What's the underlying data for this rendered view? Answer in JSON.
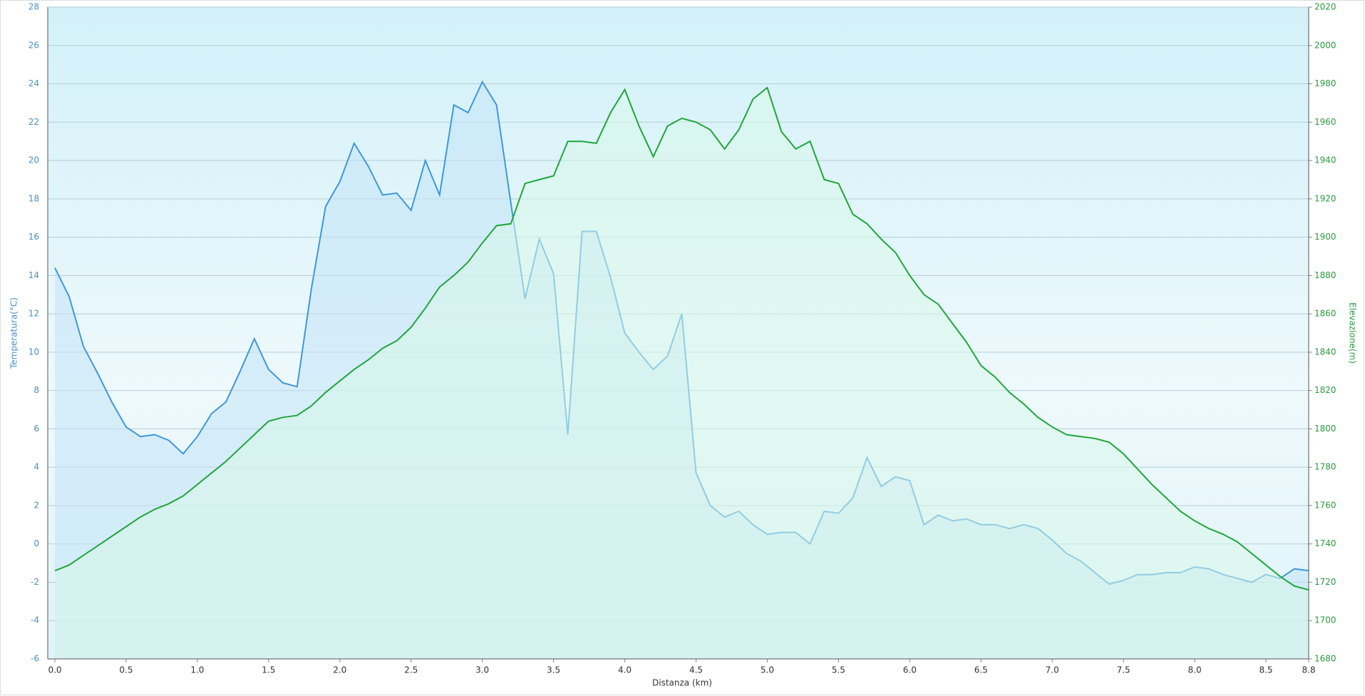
{
  "chart_data": {
    "type": "line",
    "xlabel": "Distanza  (km)",
    "ylabel": "Temperatura(°C)",
    "y2label": "Elevazione(m)",
    "x": [
      0.0,
      0.1,
      0.2,
      0.3,
      0.4,
      0.5,
      0.6,
      0.7,
      0.8,
      0.9,
      1.0,
      1.1,
      1.2,
      1.3,
      1.4,
      1.5,
      1.6,
      1.7,
      1.8,
      1.9,
      2.0,
      2.1,
      2.2,
      2.3,
      2.4,
      2.5,
      2.6,
      2.7,
      2.8,
      2.9,
      3.0,
      3.1,
      3.2,
      3.3,
      3.4,
      3.5,
      3.6,
      3.7,
      3.8,
      3.9,
      4.0,
      4.1,
      4.2,
      4.3,
      4.4,
      4.5,
      4.6,
      4.7,
      4.8,
      4.9,
      5.0,
      5.1,
      5.2,
      5.3,
      5.4,
      5.5,
      5.6,
      5.7,
      5.8,
      5.9,
      6.0,
      6.1,
      6.2,
      6.3,
      6.4,
      6.5,
      6.6,
      6.7,
      6.8,
      6.9,
      7.0,
      7.1,
      7.2,
      7.3,
      7.4,
      7.5,
      7.6,
      7.7,
      7.8,
      7.9,
      8.0,
      8.1,
      8.2,
      8.3,
      8.4,
      8.5,
      8.6,
      8.7,
      8.8
    ],
    "series": [
      {
        "name": "Temperatura",
        "color": "#3f98da",
        "fill": "#c3e4f8",
        "values": [
          14.4,
          12.9,
          10.3,
          8.9,
          7.4,
          6.1,
          5.6,
          5.7,
          5.4,
          4.7,
          5.6,
          6.8,
          7.4,
          9.0,
          10.7,
          9.1,
          8.4,
          8.2,
          13.3,
          17.6,
          18.9,
          20.9,
          19.7,
          18.2,
          18.3,
          17.4,
          20.0,
          18.2,
          22.9,
          22.5,
          24.1,
          22.9,
          17.8,
          12.8,
          15.9,
          14.1,
          5.7,
          16.3,
          16.3,
          13.9,
          11.0,
          10.0,
          9.1,
          9.8,
          12.0,
          3.7,
          2.0,
          1.4,
          1.7,
          1.0,
          0.5,
          0.6,
          0.6,
          0.0,
          1.7,
          1.6,
          2.4,
          4.5,
          3.0,
          3.5,
          3.3,
          1.0,
          1.5,
          1.2,
          1.3,
          1.0,
          1.0,
          0.8,
          1.0,
          0.8,
          0.2,
          -0.5,
          -0.9,
          -1.5,
          -2.1,
          -1.9,
          -1.6,
          -1.6,
          -1.5,
          -1.5,
          -1.2,
          -1.3,
          -1.6,
          -1.8,
          -2.0,
          -1.6,
          -1.8,
          -1.3,
          -1.4
        ]
      },
      {
        "name": "Elevazione",
        "color": "#22a63c",
        "fill": "#d8f7ea",
        "axis": "y2",
        "values": [
          1726,
          1729,
          1734,
          1739,
          1744,
          1749,
          1754,
          1758,
          1761,
          1765,
          1771,
          1777,
          1783,
          1790,
          1797,
          1804,
          1806,
          1807,
          1812,
          1819,
          1825,
          1831,
          1836,
          1842,
          1846,
          1853,
          1863,
          1874,
          1880,
          1887,
          1897,
          1906,
          1907,
          1928,
          1930,
          1932,
          1950,
          1950,
          1949,
          1965,
          1977,
          1958,
          1942,
          1958,
          1962,
          1960,
          1956,
          1946,
          1956,
          1972,
          1978,
          1955,
          1946,
          1950,
          1930,
          1928,
          1912,
          1907,
          1899,
          1892,
          1880,
          1870,
          1865,
          1855,
          1845,
          1833,
          1827,
          1819,
          1813,
          1806,
          1801,
          1797,
          1796,
          1795,
          1793,
          1787,
          1779,
          1771,
          1764,
          1757,
          1752,
          1748,
          1745,
          1741,
          1735,
          1729,
          1723,
          1718,
          1716
        ]
      }
    ],
    "xlim": [
      -0.05,
      8.8
    ],
    "xticks": [
      {
        "value": 0,
        "label": "0.0"
      },
      0.5,
      {
        "value": 1,
        "label": "1.0"
      },
      1.5,
      {
        "value": 2,
        "label": "2.0"
      },
      2.5,
      {
        "value": 3,
        "label": "3.0"
      },
      3.5,
      {
        "value": 4,
        "label": "4.0"
      },
      4.5,
      {
        "value": 5,
        "label": "5.0"
      },
      5.5,
      {
        "value": 6,
        "label": "6.0"
      },
      6.5,
      {
        "value": 7,
        "label": "7.0"
      },
      7.5,
      {
        "value": 8,
        "label": "8.0"
      },
      8.5,
      8.8
    ],
    "ylim": [
      -6,
      28
    ],
    "yticks": [
      -6,
      -4,
      -2,
      0,
      2,
      4,
      6,
      8,
      10,
      12,
      14,
      16,
      18,
      20,
      22,
      24,
      26,
      28
    ],
    "y2lim": [
      1680,
      2020
    ],
    "y2ticks": [
      1680,
      1700,
      1720,
      1740,
      1760,
      1780,
      1800,
      1820,
      1840,
      1860,
      1880,
      1900,
      1920,
      1940,
      1960,
      1980,
      2000,
      2020
    ],
    "grid": true
  }
}
